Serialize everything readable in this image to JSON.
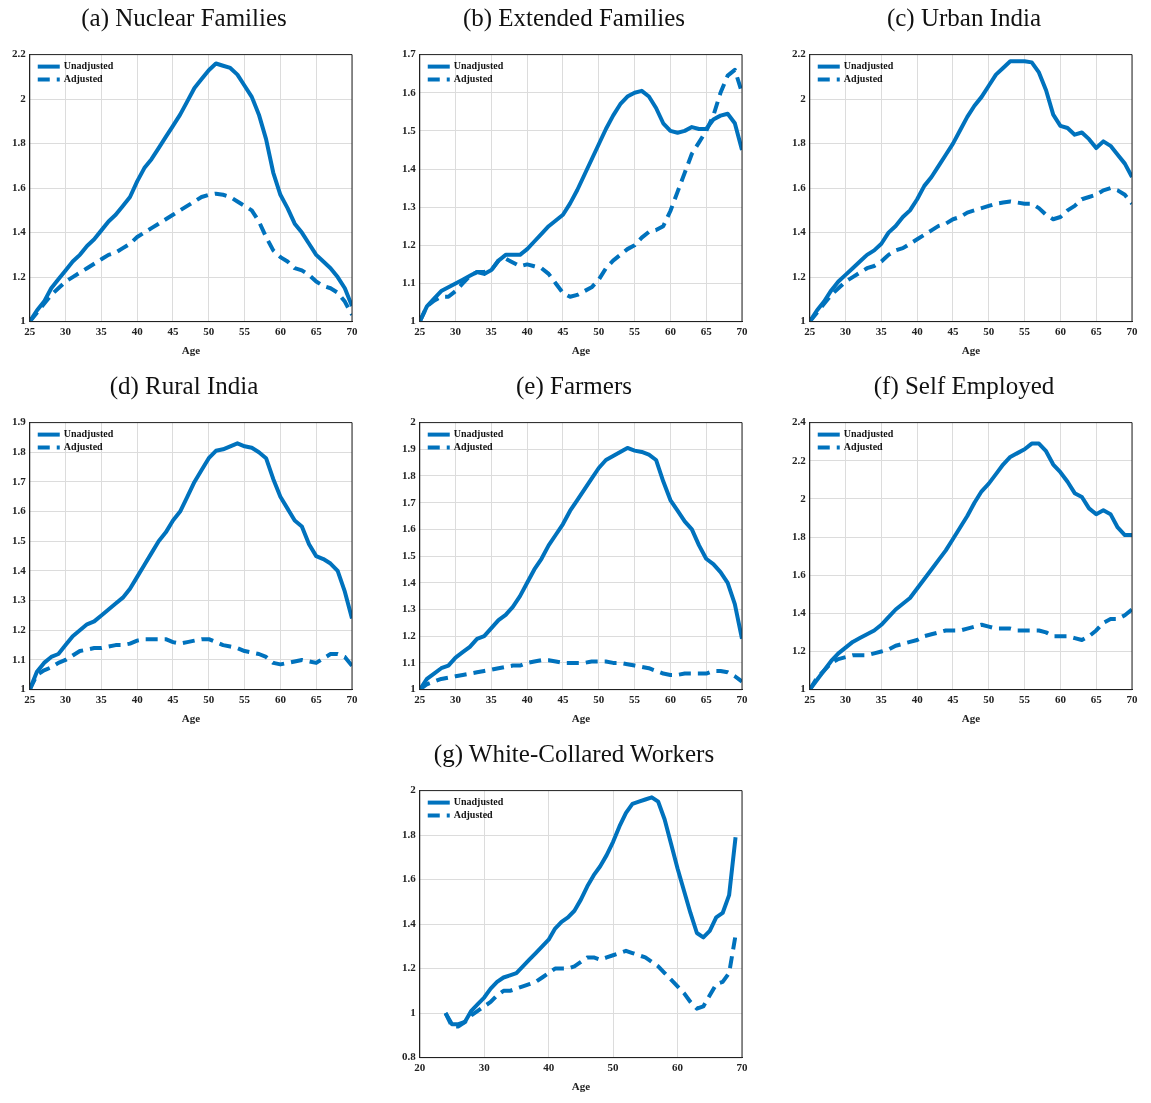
{
  "chart_data": [
    {
      "type": "line",
      "title": "(a) Nuclear Families",
      "xlabel": "Age",
      "x": [
        25,
        26,
        27,
        28,
        29,
        30,
        31,
        32,
        33,
        34,
        35,
        36,
        37,
        38,
        39,
        40,
        41,
        42,
        43,
        44,
        45,
        46,
        47,
        48,
        49,
        50,
        51,
        52,
        53,
        54,
        55,
        56,
        57,
        58,
        59,
        60,
        61,
        62,
        63,
        64,
        65,
        66,
        67,
        68,
        69,
        70
      ],
      "xlim": [
        25,
        70
      ],
      "xticks": [
        25,
        30,
        35,
        40,
        45,
        50,
        55,
        60,
        65,
        70
      ],
      "ylim": [
        1,
        2.2
      ],
      "yticks": [
        1,
        1.2,
        1.4,
        1.6,
        1.8,
        2,
        2.2
      ],
      "grid": true,
      "legend": "top left",
      "series": [
        {
          "name": "Unadjusted",
          "color": "#0072bd",
          "line_style": "solid",
          "values": [
            1.0,
            1.05,
            1.09,
            1.15,
            1.19,
            1.23,
            1.27,
            1.3,
            1.34,
            1.37,
            1.41,
            1.45,
            1.48,
            1.52,
            1.56,
            1.63,
            1.69,
            1.73,
            1.78,
            1.83,
            1.88,
            1.93,
            1.99,
            2.05,
            2.09,
            2.13,
            2.16,
            2.15,
            2.14,
            2.11,
            2.06,
            2.01,
            1.93,
            1.82,
            1.67,
            1.57,
            1.51,
            1.44,
            1.4,
            1.35,
            1.3,
            1.27,
            1.24,
            1.2,
            1.15,
            1.07
          ]
        },
        {
          "name": "Adjusted",
          "color": "#0072bd",
          "line_style": "dashed",
          "values": [
            1.0,
            1.04,
            1.08,
            1.12,
            1.15,
            1.18,
            1.2,
            1.22,
            1.24,
            1.26,
            1.28,
            1.3,
            1.31,
            1.33,
            1.35,
            1.38,
            1.4,
            1.42,
            1.44,
            1.46,
            1.48,
            1.5,
            1.52,
            1.54,
            1.56,
            1.57,
            1.575,
            1.57,
            1.56,
            1.54,
            1.52,
            1.5,
            1.45,
            1.38,
            1.32,
            1.29,
            1.27,
            1.24,
            1.23,
            1.21,
            1.18,
            1.16,
            1.15,
            1.13,
            1.09,
            1.03
          ]
        }
      ]
    },
    {
      "type": "line",
      "title": "(b) Extended Families",
      "xlabel": "Age",
      "x": [
        25,
        26,
        27,
        28,
        29,
        30,
        31,
        32,
        33,
        34,
        35,
        36,
        37,
        38,
        39,
        40,
        41,
        42,
        43,
        44,
        45,
        46,
        47,
        48,
        49,
        50,
        51,
        52,
        53,
        54,
        55,
        56,
        57,
        58,
        59,
        60,
        61,
        62,
        63,
        64,
        65,
        66,
        67,
        68,
        69,
        70
      ],
      "xlim": [
        25,
        70
      ],
      "xticks": [
        25,
        30,
        35,
        40,
        45,
        50,
        55,
        60,
        65,
        70
      ],
      "ylim": [
        1,
        1.7
      ],
      "yticks": [
        1,
        1.1,
        1.2,
        1.3,
        1.4,
        1.5,
        1.6,
        1.7
      ],
      "grid": true,
      "legend": "top left",
      "series": [
        {
          "name": "Unadjusted",
          "color": "#0072bd",
          "line_style": "solid",
          "values": [
            1.0,
            1.04,
            1.06,
            1.08,
            1.09,
            1.1,
            1.11,
            1.12,
            1.13,
            1.125,
            1.135,
            1.16,
            1.175,
            1.175,
            1.175,
            1.19,
            1.21,
            1.23,
            1.25,
            1.265,
            1.28,
            1.31,
            1.345,
            1.385,
            1.425,
            1.465,
            1.505,
            1.54,
            1.57,
            1.59,
            1.6,
            1.605,
            1.59,
            1.56,
            1.52,
            1.5,
            1.495,
            1.5,
            1.51,
            1.505,
            1.505,
            1.53,
            1.54,
            1.545,
            1.52,
            1.45
          ]
        },
        {
          "name": "Adjusted",
          "color": "#0072bd",
          "line_style": "dashed",
          "values": [
            1.0,
            1.04,
            1.055,
            1.065,
            1.065,
            1.08,
            1.1,
            1.12,
            1.13,
            1.13,
            1.135,
            1.16,
            1.165,
            1.155,
            1.145,
            1.15,
            1.145,
            1.14,
            1.125,
            1.1,
            1.075,
            1.065,
            1.07,
            1.08,
            1.09,
            1.11,
            1.14,
            1.16,
            1.175,
            1.19,
            1.2,
            1.22,
            1.235,
            1.24,
            1.25,
            1.29,
            1.34,
            1.39,
            1.44,
            1.47,
            1.5,
            1.54,
            1.6,
            1.645,
            1.66,
            1.6
          ]
        }
      ]
    },
    {
      "type": "line",
      "title": "(c) Urban India",
      "xlabel": "Age",
      "x": [
        25,
        26,
        27,
        28,
        29,
        30,
        31,
        32,
        33,
        34,
        35,
        36,
        37,
        38,
        39,
        40,
        41,
        42,
        43,
        44,
        45,
        46,
        47,
        48,
        49,
        50,
        51,
        52,
        53,
        54,
        55,
        56,
        57,
        58,
        59,
        60,
        61,
        62,
        63,
        64,
        65,
        66,
        67,
        68,
        69,
        70
      ],
      "xlim": [
        25,
        70
      ],
      "xticks": [
        25,
        30,
        35,
        40,
        45,
        50,
        55,
        60,
        65,
        70
      ],
      "ylim": [
        1,
        2.2
      ],
      "yticks": [
        1,
        1.2,
        1.4,
        1.6,
        1.8,
        2,
        2.2
      ],
      "grid": true,
      "legend": "top left",
      "series": [
        {
          "name": "Unadjusted",
          "color": "#0072bd",
          "line_style": "solid",
          "values": [
            1.0,
            1.05,
            1.09,
            1.14,
            1.18,
            1.21,
            1.24,
            1.27,
            1.3,
            1.32,
            1.35,
            1.4,
            1.43,
            1.47,
            1.5,
            1.55,
            1.61,
            1.65,
            1.7,
            1.75,
            1.8,
            1.86,
            1.92,
            1.97,
            2.01,
            2.06,
            2.11,
            2.14,
            2.17,
            2.17,
            2.17,
            2.165,
            2.12,
            2.04,
            1.93,
            1.88,
            1.87,
            1.84,
            1.85,
            1.82,
            1.78,
            1.81,
            1.79,
            1.75,
            1.71,
            1.65
          ]
        },
        {
          "name": "Adjusted",
          "color": "#0072bd",
          "line_style": "dashed",
          "values": [
            1.0,
            1.04,
            1.08,
            1.12,
            1.15,
            1.18,
            1.2,
            1.22,
            1.24,
            1.25,
            1.27,
            1.3,
            1.32,
            1.33,
            1.35,
            1.37,
            1.39,
            1.41,
            1.43,
            1.44,
            1.46,
            1.47,
            1.49,
            1.5,
            1.51,
            1.52,
            1.53,
            1.535,
            1.54,
            1.535,
            1.53,
            1.53,
            1.51,
            1.48,
            1.46,
            1.47,
            1.5,
            1.52,
            1.55,
            1.56,
            1.57,
            1.59,
            1.6,
            1.59,
            1.57,
            1.53
          ]
        }
      ]
    },
    {
      "type": "line",
      "title": "(d) Rural India",
      "xlabel": "Age",
      "x": [
        25,
        26,
        27,
        28,
        29,
        30,
        31,
        32,
        33,
        34,
        35,
        36,
        37,
        38,
        39,
        40,
        41,
        42,
        43,
        44,
        45,
        46,
        47,
        48,
        49,
        50,
        51,
        52,
        53,
        54,
        55,
        56,
        57,
        58,
        59,
        60,
        61,
        62,
        63,
        64,
        65,
        66,
        67,
        68,
        69,
        70
      ],
      "xlim": [
        25,
        70
      ],
      "xticks": [
        25,
        30,
        35,
        40,
        45,
        50,
        55,
        60,
        65,
        70
      ],
      "ylim": [
        1,
        1.9
      ],
      "yticks": [
        1,
        1.1,
        1.2,
        1.3,
        1.4,
        1.5,
        1.6,
        1.7,
        1.8,
        1.9
      ],
      "grid": true,
      "legend": "top left",
      "series": [
        {
          "name": "Unadjusted",
          "color": "#0072bd",
          "line_style": "solid",
          "values": [
            1.0,
            1.06,
            1.09,
            1.11,
            1.12,
            1.15,
            1.18,
            1.2,
            1.22,
            1.23,
            1.25,
            1.27,
            1.29,
            1.31,
            1.34,
            1.38,
            1.42,
            1.46,
            1.5,
            1.53,
            1.57,
            1.6,
            1.65,
            1.7,
            1.74,
            1.78,
            1.805,
            1.81,
            1.82,
            1.83,
            1.82,
            1.815,
            1.8,
            1.78,
            1.71,
            1.65,
            1.61,
            1.57,
            1.55,
            1.49,
            1.45,
            1.44,
            1.425,
            1.4,
            1.33,
            1.24
          ]
        },
        {
          "name": "Adjusted",
          "color": "#0072bd",
          "line_style": "dashed",
          "values": [
            1.0,
            1.05,
            1.065,
            1.075,
            1.09,
            1.1,
            1.115,
            1.13,
            1.135,
            1.14,
            1.14,
            1.145,
            1.15,
            1.15,
            1.155,
            1.165,
            1.17,
            1.17,
            1.17,
            1.17,
            1.16,
            1.155,
            1.16,
            1.165,
            1.17,
            1.17,
            1.16,
            1.15,
            1.145,
            1.14,
            1.13,
            1.125,
            1.12,
            1.11,
            1.09,
            1.085,
            1.09,
            1.095,
            1.1,
            1.095,
            1.09,
            1.105,
            1.12,
            1.12,
            1.11,
            1.08
          ]
        }
      ]
    },
    {
      "type": "line",
      "title": "(e) Farmers",
      "xlabel": "Age",
      "x": [
        25,
        26,
        27,
        28,
        29,
        30,
        31,
        32,
        33,
        34,
        35,
        36,
        37,
        38,
        39,
        40,
        41,
        42,
        43,
        44,
        45,
        46,
        47,
        48,
        49,
        50,
        51,
        52,
        53,
        54,
        55,
        56,
        57,
        58,
        59,
        60,
        61,
        62,
        63,
        64,
        65,
        66,
        67,
        68,
        69,
        70
      ],
      "xlim": [
        25,
        70
      ],
      "xticks": [
        25,
        30,
        35,
        40,
        45,
        50,
        55,
        60,
        65,
        70
      ],
      "ylim": [
        1,
        2
      ],
      "yticks": [
        1,
        1.1,
        1.2,
        1.3,
        1.4,
        1.5,
        1.6,
        1.7,
        1.8,
        1.9,
        2
      ],
      "grid": true,
      "legend": "top left",
      "series": [
        {
          "name": "Unadjusted",
          "color": "#0072bd",
          "line_style": "solid",
          "values": [
            1.0,
            1.04,
            1.06,
            1.08,
            1.09,
            1.12,
            1.14,
            1.16,
            1.19,
            1.2,
            1.23,
            1.26,
            1.28,
            1.31,
            1.35,
            1.4,
            1.45,
            1.49,
            1.54,
            1.58,
            1.62,
            1.67,
            1.71,
            1.75,
            1.79,
            1.83,
            1.86,
            1.875,
            1.89,
            1.905,
            1.895,
            1.89,
            1.88,
            1.86,
            1.78,
            1.71,
            1.67,
            1.63,
            1.6,
            1.54,
            1.49,
            1.47,
            1.44,
            1.4,
            1.32,
            1.19
          ]
        },
        {
          "name": "Adjusted",
          "color": "#0072bd",
          "line_style": "dashed",
          "values": [
            1.0,
            1.02,
            1.03,
            1.04,
            1.045,
            1.05,
            1.055,
            1.06,
            1.065,
            1.07,
            1.075,
            1.08,
            1.085,
            1.09,
            1.09,
            1.1,
            1.105,
            1.11,
            1.11,
            1.105,
            1.1,
            1.1,
            1.1,
            1.1,
            1.105,
            1.105,
            1.105,
            1.1,
            1.1,
            1.095,
            1.09,
            1.085,
            1.08,
            1.07,
            1.06,
            1.055,
            1.055,
            1.06,
            1.06,
            1.06,
            1.06,
            1.07,
            1.07,
            1.065,
            1.05,
            1.03
          ]
        }
      ]
    },
    {
      "type": "line",
      "title": "(f) Self Employed",
      "xlabel": "Age",
      "x": [
        25,
        26,
        27,
        28,
        29,
        30,
        31,
        32,
        33,
        34,
        35,
        36,
        37,
        38,
        39,
        40,
        41,
        42,
        43,
        44,
        45,
        46,
        47,
        48,
        49,
        50,
        51,
        52,
        53,
        54,
        55,
        56,
        57,
        58,
        59,
        60,
        61,
        62,
        63,
        64,
        65,
        66,
        67,
        68,
        69,
        70
      ],
      "xlim": [
        25,
        70
      ],
      "xticks": [
        25,
        30,
        35,
        40,
        45,
        50,
        55,
        60,
        65,
        70
      ],
      "ylim": [
        1,
        2.4
      ],
      "yticks": [
        1,
        1.2,
        1.4,
        1.6,
        1.8,
        2,
        2.2,
        2.4
      ],
      "grid": true,
      "legend": "top left",
      "series": [
        {
          "name": "Unadjusted",
          "color": "#0072bd",
          "line_style": "solid",
          "values": [
            1.0,
            1.05,
            1.1,
            1.15,
            1.19,
            1.22,
            1.25,
            1.27,
            1.29,
            1.31,
            1.34,
            1.38,
            1.42,
            1.45,
            1.48,
            1.53,
            1.58,
            1.63,
            1.68,
            1.73,
            1.79,
            1.85,
            1.91,
            1.98,
            2.04,
            2.08,
            2.13,
            2.18,
            2.22,
            2.24,
            2.26,
            2.29,
            2.29,
            2.25,
            2.18,
            2.14,
            2.09,
            2.03,
            2.01,
            1.95,
            1.92,
            1.94,
            1.92,
            1.85,
            1.81,
            1.81
          ]
        },
        {
          "name": "Adjusted",
          "color": "#0072bd",
          "line_style": "dashed",
          "values": [
            1.0,
            1.06,
            1.1,
            1.14,
            1.16,
            1.17,
            1.18,
            1.18,
            1.18,
            1.19,
            1.2,
            1.21,
            1.23,
            1.24,
            1.25,
            1.26,
            1.28,
            1.29,
            1.3,
            1.31,
            1.31,
            1.31,
            1.32,
            1.33,
            1.34,
            1.33,
            1.32,
            1.32,
            1.32,
            1.31,
            1.31,
            1.31,
            1.31,
            1.3,
            1.28,
            1.28,
            1.28,
            1.27,
            1.26,
            1.28,
            1.31,
            1.35,
            1.37,
            1.37,
            1.39,
            1.42
          ]
        }
      ]
    },
    {
      "type": "line",
      "title": "(g) White-Collared Workers",
      "xlabel": "Age",
      "x": [
        24,
        25,
        26,
        27,
        28,
        29,
        30,
        31,
        32,
        33,
        34,
        35,
        36,
        37,
        38,
        39,
        40,
        41,
        42,
        43,
        44,
        45,
        46,
        47,
        48,
        49,
        50,
        51,
        52,
        53,
        54,
        55,
        56,
        57,
        58,
        59,
        60,
        61,
        62,
        63,
        64,
        65,
        66,
        67,
        68,
        69
      ],
      "xlim": [
        20,
        70
      ],
      "xticks": [
        20,
        30,
        40,
        50,
        60,
        70
      ],
      "ylim": [
        0.8,
        2
      ],
      "yticks": [
        0.8,
        1,
        1.2,
        1.4,
        1.6,
        1.8,
        2
      ],
      "grid": true,
      "legend": "top left",
      "series": [
        {
          "name": "Unadjusted",
          "color": "#0072bd",
          "line_style": "solid",
          "values": [
            1.0,
            0.95,
            0.95,
            0.96,
            1.01,
            1.04,
            1.07,
            1.11,
            1.14,
            1.16,
            1.17,
            1.18,
            1.21,
            1.24,
            1.27,
            1.3,
            1.33,
            1.38,
            1.41,
            1.43,
            1.46,
            1.51,
            1.57,
            1.62,
            1.66,
            1.71,
            1.77,
            1.84,
            1.9,
            1.94,
            1.95,
            1.96,
            1.97,
            1.95,
            1.87,
            1.76,
            1.65,
            1.55,
            1.45,
            1.36,
            1.34,
            1.37,
            1.43,
            1.45,
            1.53,
            1.79
          ]
        },
        {
          "name": "Adjusted",
          "color": "#0072bd",
          "line_style": "dashed",
          "values": [
            1.0,
            0.94,
            0.94,
            0.96,
            0.99,
            1.01,
            1.03,
            1.05,
            1.08,
            1.1,
            1.1,
            1.11,
            1.12,
            1.13,
            1.14,
            1.16,
            1.18,
            1.2,
            1.2,
            1.2,
            1.21,
            1.23,
            1.25,
            1.25,
            1.24,
            1.25,
            1.26,
            1.27,
            1.28,
            1.27,
            1.26,
            1.25,
            1.23,
            1.21,
            1.18,
            1.15,
            1.12,
            1.09,
            1.05,
            1.02,
            1.03,
            1.08,
            1.13,
            1.14,
            1.18,
            1.35
          ]
        }
      ]
    }
  ]
}
